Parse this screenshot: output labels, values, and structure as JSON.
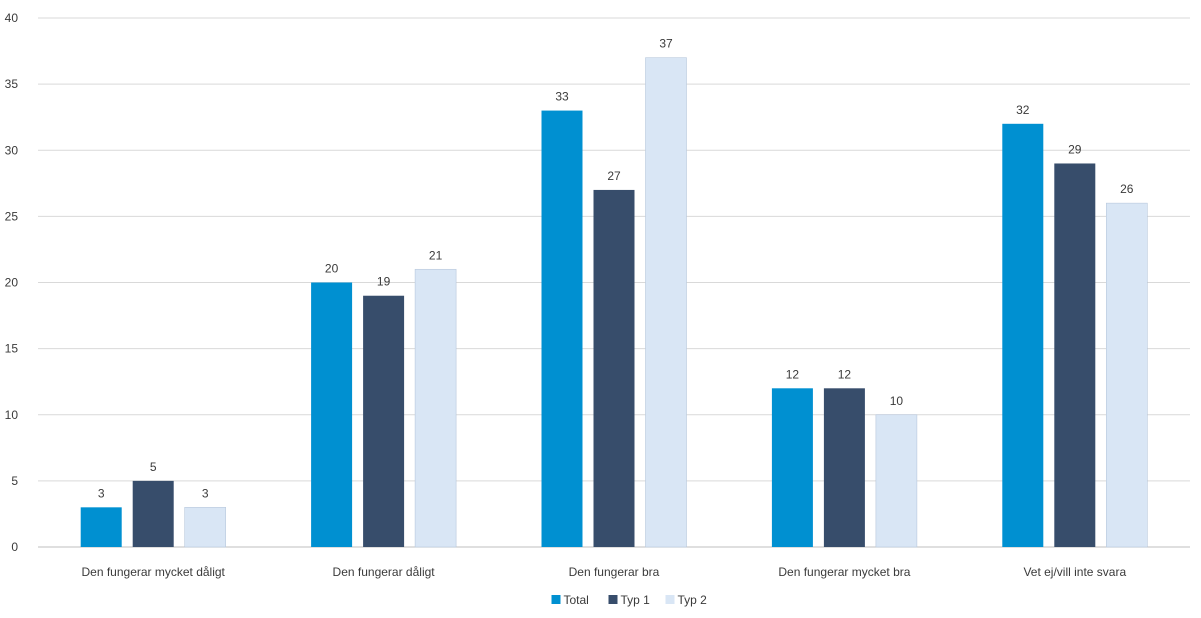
{
  "chart_data": {
    "type": "bar",
    "categories": [
      "Den fungerar mycket dåligt",
      "Den fungerar dåligt",
      "Den fungerar bra",
      "Den fungerar mycket bra",
      "Vet ej/vill inte svara"
    ],
    "series": [
      {
        "name": "Total",
        "color": "#0090d1",
        "values": [
          3,
          20,
          33,
          12,
          32
        ]
      },
      {
        "name": "Typ 1",
        "color": "#374d6b",
        "values": [
          5,
          19,
          27,
          12,
          29
        ]
      },
      {
        "name": "Typ 2",
        "color": "#d9e6f5",
        "values": [
          3,
          21,
          37,
          10,
          26
        ]
      }
    ],
    "yticks": [
      0,
      5,
      10,
      15,
      20,
      25,
      30,
      35,
      40
    ],
    "ylim": [
      0,
      40
    ],
    "grid": true,
    "legend": "bottom-center"
  }
}
